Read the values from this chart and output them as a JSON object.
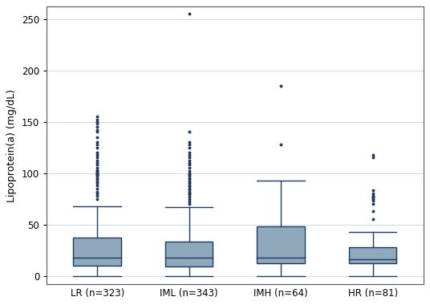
{
  "groups": [
    "LR (n=323)",
    "IML (n=343)",
    "IMH (n=64)",
    "HR (n=81)"
  ],
  "box_stats": [
    {
      "q1": 10,
      "median": 18,
      "q3": 37,
      "whisker_low": 0,
      "whisker_high": 68,
      "outliers": [
        75,
        78,
        80,
        82,
        85,
        88,
        90,
        92,
        94,
        95,
        97,
        98,
        99,
        100,
        100,
        101,
        102,
        103,
        105,
        108,
        110,
        112,
        115,
        118,
        120,
        125,
        128,
        130,
        135,
        140,
        142,
        145,
        148,
        150,
        152,
        155
      ]
    },
    {
      "q1": 9,
      "median": 18,
      "q3": 33,
      "whisker_low": 0,
      "whisker_high": 67,
      "outliers": [
        70,
        72,
        75,
        77,
        79,
        80,
        82,
        84,
        85,
        87,
        88,
        90,
        92,
        94,
        95,
        97,
        99,
        100,
        102,
        105,
        108,
        110,
        112,
        115,
        118,
        120,
        125,
        128,
        130,
        140,
        255
      ]
    },
    {
      "q1": 12,
      "median": 18,
      "q3": 48,
      "whisker_low": 0,
      "whisker_high": 93,
      "outliers": [
        128,
        185
      ]
    },
    {
      "q1": 12,
      "median": 16,
      "q3": 28,
      "whisker_low": 0,
      "whisker_high": 43,
      "outliers": [
        55,
        63,
        70,
        73,
        75,
        76,
        77,
        78,
        80,
        83,
        115,
        118
      ]
    }
  ],
  "ylabel": "Lipoprotein(a) (mg/dL)",
  "ylim": [
    -8,
    262
  ],
  "yticks": [
    0,
    50,
    100,
    150,
    200,
    250
  ],
  "box_color": "#8fa8bc",
  "box_edgecolor": "#1e3a5f",
  "outlier_color": "#1e3a5f",
  "whisker_color": "#1e3a5f",
  "median_color": "#1e3a5f",
  "grid_color": "#c8dae8",
  "background_color": "#ffffff",
  "linewidth": 1.0,
  "box_width": 0.52,
  "figsize": [
    5.36,
    3.8
  ],
  "dpi": 100
}
